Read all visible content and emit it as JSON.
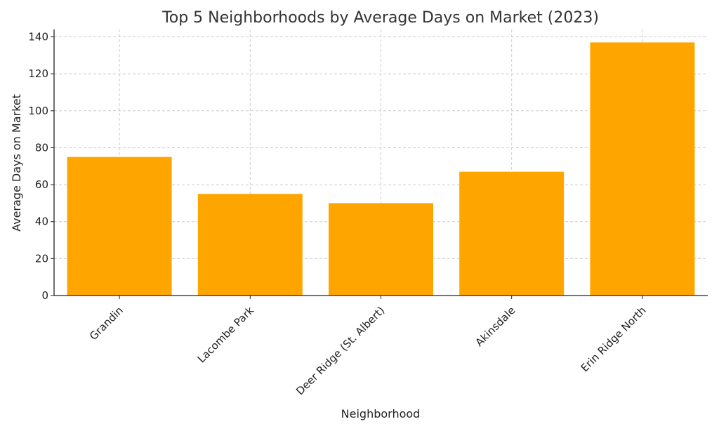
{
  "chart_data": {
    "type": "bar",
    "title": "Top 5 Neighborhoods by Average Days on Market (2023)",
    "xlabel": "Neighborhood",
    "ylabel": "Average Days on Market",
    "categories": [
      "Grandin",
      "Lacombe Park",
      "Deer Ridge (St. Albert)",
      "Akinsdale",
      "Erin Ridge North"
    ],
    "values": [
      75,
      55,
      50,
      67,
      137
    ],
    "ylim": [
      0,
      144
    ],
    "yticks": [
      0,
      20,
      40,
      60,
      80,
      100,
      120,
      140
    ],
    "grid": true,
    "bar_color": "#ffa500"
  }
}
